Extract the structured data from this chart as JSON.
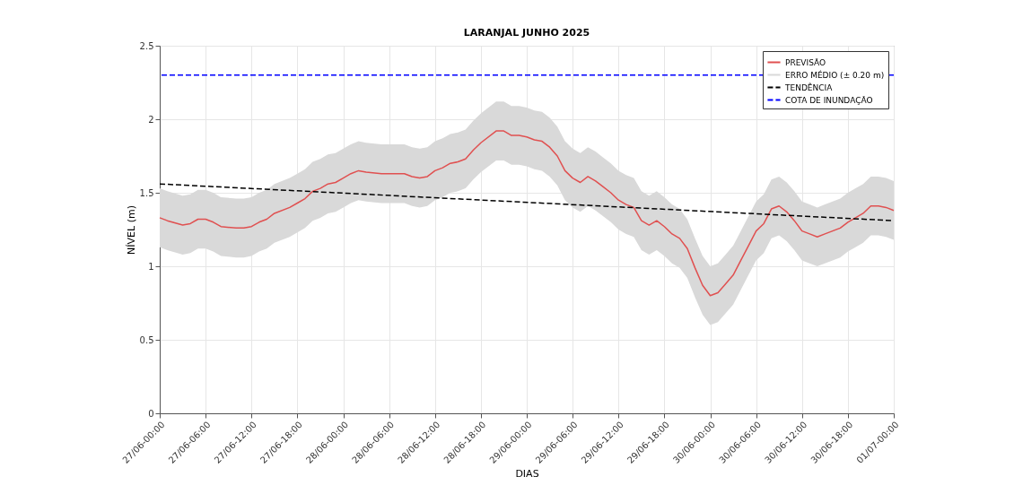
{
  "chart_data": {
    "type": "line",
    "title": "LARANJAL JUNHO 2025",
    "xlabel": "DIAS",
    "ylabel": "NÍVEL (m)",
    "x": [
      "2025-06-27T00:00",
      "2025-06-27T01:00",
      "2025-06-27T03:00",
      "2025-06-27T04:00",
      "2025-06-27T05:00",
      "2025-06-27T06:00",
      "2025-06-27T07:00",
      "2025-06-27T08:00",
      "2025-06-27T10:00",
      "2025-06-27T11:00",
      "2025-06-27T12:00",
      "2025-06-27T13:00",
      "2025-06-27T14:00",
      "2025-06-27T15:00",
      "2025-06-27T17:00",
      "2025-06-27T18:00",
      "2025-06-27T19:00",
      "2025-06-27T20:00",
      "2025-06-27T21:00",
      "2025-06-27T22:00",
      "2025-06-27T23:00",
      "2025-06-28T00:00",
      "2025-06-28T01:00",
      "2025-06-28T02:00",
      "2025-06-28T03:00",
      "2025-06-28T05:00",
      "2025-06-28T06:00",
      "2025-06-28T07:00",
      "2025-06-28T08:00",
      "2025-06-28T09:00",
      "2025-06-28T10:00",
      "2025-06-28T11:00",
      "2025-06-28T12:00",
      "2025-06-28T13:00",
      "2025-06-28T14:00",
      "2025-06-28T15:00",
      "2025-06-28T16:00",
      "2025-06-28T17:00",
      "2025-06-28T18:00",
      "2025-06-28T20:00",
      "2025-06-28T21:00",
      "2025-06-28T22:00",
      "2025-06-28T23:00",
      "2025-06-29T00:00",
      "2025-06-29T01:00",
      "2025-06-29T02:00",
      "2025-06-29T03:00",
      "2025-06-29T04:00",
      "2025-06-29T05:00",
      "2025-06-29T06:00",
      "2025-06-29T07:00",
      "2025-06-29T08:00",
      "2025-06-29T09:00",
      "2025-06-29T10:00",
      "2025-06-29T11:00",
      "2025-06-29T12:00",
      "2025-06-29T13:00",
      "2025-06-29T14:00",
      "2025-06-29T15:00",
      "2025-06-29T16:00",
      "2025-06-29T17:00",
      "2025-06-29T18:00",
      "2025-06-29T19:00",
      "2025-06-29T20:00",
      "2025-06-29T21:00",
      "2025-06-29T22:00",
      "2025-06-29T23:00",
      "2025-06-30T00:00",
      "2025-06-30T01:00",
      "2025-06-30T02:00",
      "2025-06-30T03:00",
      "2025-06-30T04:00",
      "2025-06-30T05:00",
      "2025-06-30T06:00",
      "2025-06-30T07:00",
      "2025-06-30T08:00",
      "2025-06-30T09:00",
      "2025-06-30T10:00",
      "2025-06-30T11:00",
      "2025-06-30T12:00",
      "2025-06-30T13:00",
      "2025-06-30T14:00",
      "2025-06-30T15:00",
      "2025-06-30T16:00",
      "2025-06-30T17:00",
      "2025-06-30T18:00",
      "2025-06-30T19:00",
      "2025-06-30T20:00",
      "2025-06-30T21:00",
      "2025-06-30T22:00",
      "2025-06-30T23:00",
      "2025-07-01T00:00"
    ],
    "series": [
      {
        "name": "PREVISÃO",
        "color": "#e05050",
        "values": [
          1.33,
          1.31,
          1.28,
          1.29,
          1.32,
          1.32,
          1.3,
          1.27,
          1.26,
          1.26,
          1.27,
          1.3,
          1.32,
          1.36,
          1.4,
          1.43,
          1.46,
          1.51,
          1.53,
          1.56,
          1.57,
          1.6,
          1.63,
          1.65,
          1.64,
          1.63,
          1.63,
          1.63,
          1.63,
          1.61,
          1.6,
          1.61,
          1.65,
          1.67,
          1.7,
          1.71,
          1.73,
          1.79,
          1.84,
          1.92,
          1.92,
          1.89,
          1.89,
          1.88,
          1.86,
          1.85,
          1.81,
          1.75,
          1.65,
          1.6,
          1.57,
          1.61,
          1.58,
          1.54,
          1.5,
          1.45,
          1.42,
          1.4,
          1.31,
          1.28,
          1.31,
          1.27,
          1.22,
          1.19,
          1.12,
          0.99,
          0.87,
          0.8,
          0.82,
          0.88,
          0.94,
          1.04,
          1.14,
          1.24,
          1.29,
          1.39,
          1.41,
          1.37,
          1.31,
          1.24,
          1.22,
          1.2,
          1.22,
          1.24,
          1.26,
          1.3,
          1.33,
          1.36,
          1.41,
          1.41,
          1.4,
          1.38
        ],
        "lower": [
          1.13,
          1.11,
          1.08,
          1.09,
          1.12,
          1.12,
          1.1,
          1.07,
          1.06,
          1.06,
          1.07,
          1.1,
          1.12,
          1.16,
          1.2,
          1.23,
          1.26,
          1.31,
          1.33,
          1.36,
          1.37,
          1.4,
          1.43,
          1.45,
          1.44,
          1.43,
          1.43,
          1.43,
          1.43,
          1.41,
          1.4,
          1.41,
          1.45,
          1.47,
          1.5,
          1.51,
          1.53,
          1.59,
          1.64,
          1.72,
          1.72,
          1.69,
          1.69,
          1.68,
          1.66,
          1.65,
          1.61,
          1.55,
          1.45,
          1.4,
          1.37,
          1.41,
          1.38,
          1.34,
          1.3,
          1.25,
          1.22,
          1.2,
          1.11,
          1.08,
          1.11,
          1.07,
          1.02,
          0.99,
          0.92,
          0.79,
          0.67,
          0.6,
          0.62,
          0.68,
          0.74,
          0.84,
          0.94,
          1.04,
          1.09,
          1.19,
          1.21,
          1.17,
          1.11,
          1.04,
          1.02,
          1.0,
          1.02,
          1.04,
          1.06,
          1.1,
          1.13,
          1.16,
          1.21,
          1.21,
          1.2,
          1.18
        ],
        "upper": [
          1.53,
          1.51,
          1.48,
          1.49,
          1.52,
          1.52,
          1.5,
          1.47,
          1.46,
          1.46,
          1.47,
          1.5,
          1.52,
          1.56,
          1.6,
          1.63,
          1.66,
          1.71,
          1.73,
          1.76,
          1.77,
          1.8,
          1.83,
          1.85,
          1.84,
          1.83,
          1.83,
          1.83,
          1.83,
          1.81,
          1.8,
          1.81,
          1.85,
          1.87,
          1.9,
          1.91,
          1.93,
          1.99,
          2.04,
          2.12,
          2.12,
          2.09,
          2.09,
          2.08,
          2.06,
          2.05,
          2.01,
          1.95,
          1.85,
          1.8,
          1.77,
          1.81,
          1.78,
          1.74,
          1.7,
          1.65,
          1.62,
          1.6,
          1.51,
          1.48,
          1.51,
          1.47,
          1.42,
          1.39,
          1.32,
          1.19,
          1.07,
          1.0,
          1.02,
          1.08,
          1.14,
          1.24,
          1.34,
          1.44,
          1.49,
          1.59,
          1.61,
          1.57,
          1.51,
          1.44,
          1.42,
          1.4,
          1.42,
          1.44,
          1.46,
          1.5,
          1.53,
          1.56,
          1.61,
          1.61,
          1.6,
          1.58
        ]
      },
      {
        "name": "TENDÊNCIA",
        "type": "line",
        "color": "#000000",
        "line_style": "dashed",
        "x": [
          "2025-06-27T00:00",
          "2025-07-01T00:00"
        ],
        "values": [
          1.56,
          1.31
        ]
      }
    ],
    "annotations": [
      "ERRO MÉDIO (± 0.20 m)"
    ],
    "ref_lines": [
      {
        "axis": "y",
        "value": 2.3,
        "label": "COTA DE INUNDAÇÃO",
        "color": "#0000ff",
        "line_style": "dashed"
      }
    ],
    "xlim": [
      "2025-06-27T00:00",
      "2025-07-01T00:00"
    ],
    "xticks": [
      {
        "value": "2025-06-27T00:00",
        "label": "27/06-00:00"
      },
      {
        "value": "2025-06-27T06:00",
        "label": "27/06-06:00"
      },
      {
        "value": "2025-06-27T12:00",
        "label": "27/06-12:00"
      },
      {
        "value": "2025-06-27T18:00",
        "label": "27/06-18:00"
      },
      {
        "value": "2025-06-28T00:00",
        "label": "28/06-00:00"
      },
      {
        "value": "2025-06-28T06:00",
        "label": "28/06-06:00"
      },
      {
        "value": "2025-06-28T12:00",
        "label": "28/06-12:00"
      },
      {
        "value": "2025-06-28T18:00",
        "label": "28/06-18:00"
      },
      {
        "value": "2025-06-29T00:00",
        "label": "29/06-00:00"
      },
      {
        "value": "2025-06-29T06:00",
        "label": "29/06-06:00"
      },
      {
        "value": "2025-06-29T12:00",
        "label": "29/06-12:00"
      },
      {
        "value": "2025-06-29T18:00",
        "label": "29/06-18:00"
      },
      {
        "value": "2025-06-30T00:00",
        "label": "30/06-00:00"
      },
      {
        "value": "2025-06-30T06:00",
        "label": "30/06-06:00"
      },
      {
        "value": "2025-06-30T12:00",
        "label": "30/06-12:00"
      },
      {
        "value": "2025-06-30T18:00",
        "label": "30/06-18:00"
      },
      {
        "value": "2025-07-01T00:00",
        "label": "01/07-00:00"
      }
    ],
    "ylim": [
      0,
      2.5
    ],
    "yticks": [
      0,
      0.5,
      1,
      1.5,
      2,
      2.5
    ],
    "grid": true,
    "legend": "top right"
  }
}
